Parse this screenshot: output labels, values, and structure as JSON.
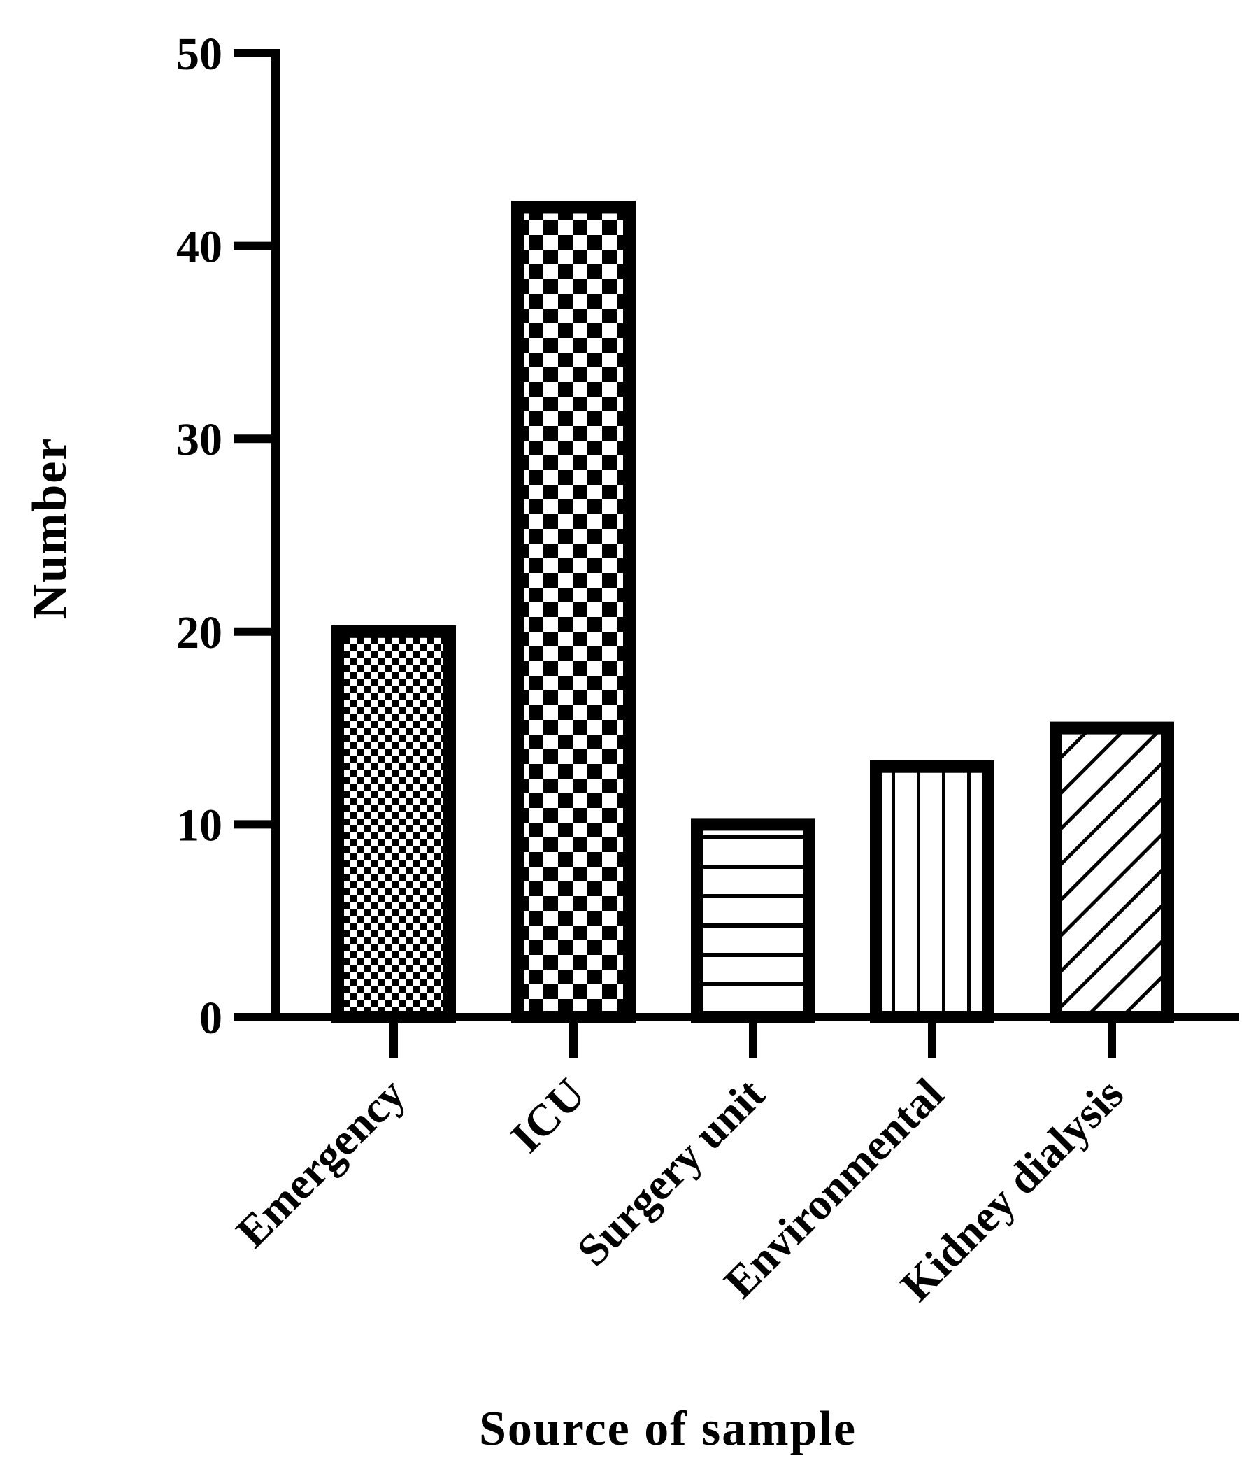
{
  "chart_data": {
    "type": "bar",
    "title": "",
    "xlabel": "Source of sample",
    "ylabel": "Number",
    "categories": [
      "Emergency",
      "ICU",
      "Surgery unit",
      "Environmental",
      "Kidney dialysis"
    ],
    "values": [
      20,
      42,
      10,
      13,
      15
    ],
    "patterns": [
      "fine-checker",
      "coarse-checker",
      "horizontal-lines",
      "vertical-lines",
      "diagonal-lines"
    ],
    "ylim": [
      0,
      50
    ],
    "yticks": [
      0,
      10,
      20,
      30,
      40,
      50
    ],
    "grid": false,
    "colors": {
      "stroke": "#000000",
      "fill": "#ffffff"
    }
  }
}
